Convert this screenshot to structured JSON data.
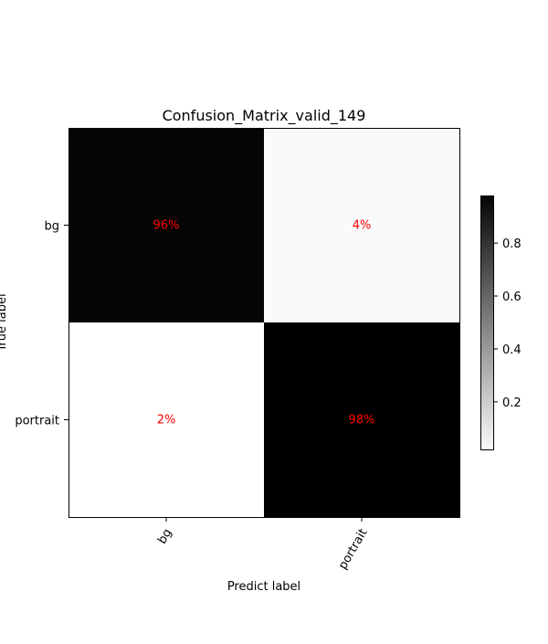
{
  "chart_data": {
    "type": "heatmap",
    "title": "Confusion_Matrix_valid_149",
    "xlabel": "Predict label",
    "ylabel": "True label",
    "x_categories": [
      "bg",
      "portrait"
    ],
    "y_categories": [
      "bg",
      "portrait"
    ],
    "values": [
      [
        0.96,
        0.04
      ],
      [
        0.02,
        0.98
      ]
    ],
    "cell_labels": [
      [
        "96%",
        "4%"
      ],
      [
        "2%",
        "98%"
      ]
    ],
    "colormap": "binary",
    "annotation_color": "#ff0000",
    "colorbar": {
      "range": [
        0.02,
        0.98
      ],
      "ticks": [
        0.2,
        0.4,
        0.6,
        0.8
      ],
      "tick_labels": [
        "0.2",
        "0.4",
        "0.6",
        "0.8"
      ]
    }
  }
}
